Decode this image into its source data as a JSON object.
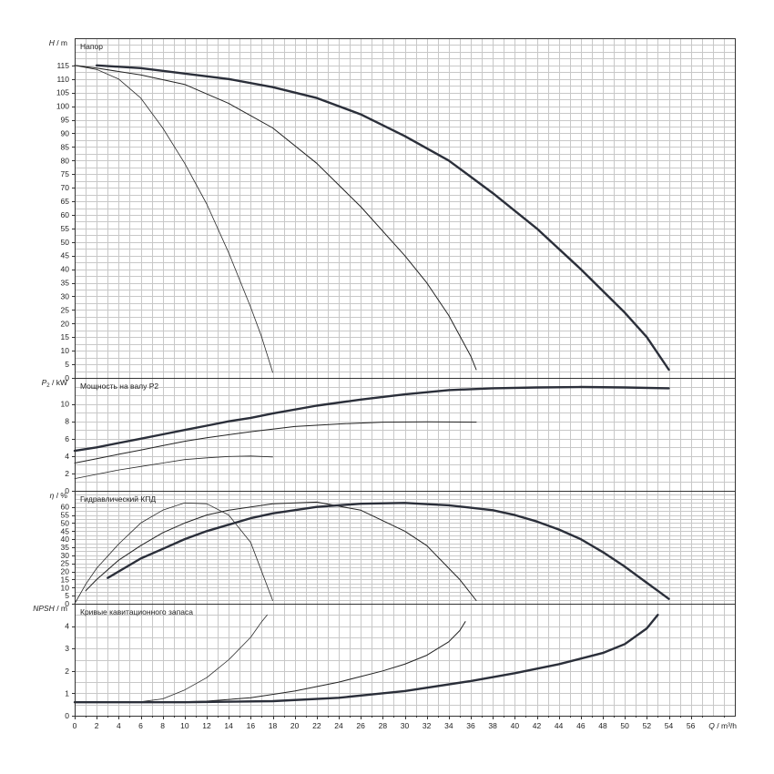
{
  "chart_data": {
    "type": "line",
    "x_axis": {
      "label_var": "Q",
      "label_unit": "m³/h",
      "range": [
        0,
        60
      ],
      "ticks": [
        "0",
        "2",
        "4",
        "6",
        "8",
        "10",
        "12",
        "14",
        "16",
        "18",
        "20",
        "22",
        "24",
        "26",
        "28",
        "30",
        "32",
        "34",
        "36",
        "38",
        "40",
        "42",
        "44",
        "46",
        "48",
        "50",
        "52",
        "54",
        "56"
      ]
    },
    "panels": [
      {
        "id": "head",
        "title": "Напор",
        "ylabel_var": "H",
        "ylabel_unit": "m",
        "ylim": [
          0,
          125
        ],
        "ticks": [
          "0",
          "5",
          "10",
          "15",
          "20",
          "25",
          "30",
          "35",
          "40",
          "45",
          "50",
          "55",
          "60",
          "65",
          "70",
          "75",
          "80",
          "85",
          "90",
          "95",
          "100",
          "105",
          "110",
          "115"
        ],
        "series": [
          {
            "style": "thin",
            "points": [
              [
                0,
                115
              ],
              [
                2,
                113.5
              ],
              [
                4,
                110
              ],
              [
                6,
                103
              ],
              [
                8,
                92
              ],
              [
                10,
                79
              ],
              [
                12,
                64
              ],
              [
                14,
                46
              ],
              [
                16,
                26
              ],
              [
                17,
                15
              ],
              [
                18,
                2
              ]
            ]
          },
          {
            "style": "medium",
            "points": [
              [
                0,
                115
              ],
              [
                2,
                114
              ],
              [
                6,
                111.5
              ],
              [
                10,
                108
              ],
              [
                14,
                101
              ],
              [
                18,
                92
              ],
              [
                22,
                79
              ],
              [
                26,
                63
              ],
              [
                30,
                45
              ],
              [
                32,
                35
              ],
              [
                34,
                23
              ],
              [
                36,
                8
              ],
              [
                36.5,
                3
              ]
            ]
          },
          {
            "style": "bold",
            "points": [
              [
                2,
                115
              ],
              [
                6,
                114
              ],
              [
                10,
                112
              ],
              [
                14,
                110
              ],
              [
                18,
                107
              ],
              [
                22,
                103
              ],
              [
                26,
                97
              ],
              [
                30,
                89
              ],
              [
                34,
                80
              ],
              [
                38,
                68
              ],
              [
                42,
                55
              ],
              [
                46,
                40
              ],
              [
                50,
                24
              ],
              [
                52,
                15
              ],
              [
                54,
                3
              ]
            ]
          }
        ]
      },
      {
        "id": "power",
        "title": "Мощность на валу P2",
        "ylabel_var": "P",
        "ylabel_sub": "2",
        "ylabel_unit": "kW",
        "ylim": [
          0,
          13
        ],
        "ticks": [
          "0",
          "2",
          "4",
          "6",
          "8",
          "10"
        ],
        "series": [
          {
            "style": "thin",
            "points": [
              [
                0,
                1.4
              ],
              [
                2,
                1.9
              ],
              [
                4,
                2.4
              ],
              [
                6,
                2.8
              ],
              [
                8,
                3.2
              ],
              [
                10,
                3.6
              ],
              [
                12,
                3.8
              ],
              [
                14,
                3.95
              ],
              [
                16,
                4.0
              ],
              [
                18,
                3.9
              ]
            ]
          },
          {
            "style": "medium",
            "points": [
              [
                0,
                3.2
              ],
              [
                2,
                3.7
              ],
              [
                4,
                4.2
              ],
              [
                6,
                4.7
              ],
              [
                8,
                5.2
              ],
              [
                10,
                5.7
              ],
              [
                12,
                6.1
              ],
              [
                16,
                6.8
              ],
              [
                20,
                7.4
              ],
              [
                24,
                7.7
              ],
              [
                28,
                7.9
              ],
              [
                32,
                7.95
              ],
              [
                36.5,
                7.9
              ]
            ]
          },
          {
            "style": "bold",
            "points": [
              [
                0,
                4.6
              ],
              [
                2,
                5.0
              ],
              [
                4,
                5.5
              ],
              [
                6,
                6.0
              ],
              [
                8,
                6.5
              ],
              [
                10,
                7.0
              ],
              [
                12,
                7.5
              ],
              [
                14,
                8.0
              ],
              [
                16,
                8.4
              ],
              [
                18,
                8.9
              ],
              [
                22,
                9.8
              ],
              [
                26,
                10.5
              ],
              [
                30,
                11.1
              ],
              [
                34,
                11.6
              ],
              [
                38,
                11.8
              ],
              [
                42,
                11.9
              ],
              [
                46,
                11.95
              ],
              [
                50,
                11.9
              ],
              [
                54,
                11.8
              ]
            ]
          }
        ]
      },
      {
        "id": "efficiency",
        "title": "Гидравлический КПД",
        "ylabel_var": "η",
        "ylabel_unit": "%",
        "ylim": [
          0,
          70
        ],
        "ticks": [
          "0",
          "5",
          "10",
          "15",
          "20",
          "25",
          "30",
          "35",
          "40",
          "45",
          "50",
          "55",
          "60"
        ],
        "series": [
          {
            "style": "thin",
            "points": [
              [
                0,
                0
              ],
              [
                1,
                12
              ],
              [
                2,
                22
              ],
              [
                4,
                37
              ],
              [
                6,
                50
              ],
              [
                8,
                58
              ],
              [
                10,
                62.5
              ],
              [
                12,
                62
              ],
              [
                14,
                55
              ],
              [
                16,
                38
              ],
              [
                17,
                20
              ],
              [
                18,
                2
              ]
            ]
          },
          {
            "style": "medium",
            "points": [
              [
                1,
                8
              ],
              [
                2,
                15
              ],
              [
                4,
                27
              ],
              [
                6,
                36
              ],
              [
                8,
                44
              ],
              [
                10,
                50
              ],
              [
                12,
                55
              ],
              [
                14,
                58
              ],
              [
                18,
                62
              ],
              [
                22,
                63
              ],
              [
                26,
                58
              ],
              [
                30,
                45
              ],
              [
                32,
                36
              ],
              [
                34,
                22
              ],
              [
                35,
                15
              ],
              [
                36.5,
                2
              ]
            ]
          },
          {
            "style": "bold",
            "points": [
              [
                3,
                16
              ],
              [
                4,
                20
              ],
              [
                6,
                28
              ],
              [
                8,
                34
              ],
              [
                10,
                40
              ],
              [
                12,
                45
              ],
              [
                14,
                49
              ],
              [
                16,
                53
              ],
              [
                18,
                56
              ],
              [
                22,
                60
              ],
              [
                26,
                62
              ],
              [
                30,
                62.5
              ],
              [
                34,
                61
              ],
              [
                38,
                58
              ],
              [
                40,
                55
              ],
              [
                42,
                51
              ],
              [
                44,
                46
              ],
              [
                46,
                40
              ],
              [
                48,
                32
              ],
              [
                50,
                23
              ],
              [
                52,
                13
              ],
              [
                53,
                8
              ],
              [
                54,
                3
              ]
            ]
          }
        ]
      },
      {
        "id": "npsh",
        "title": "Кривые кавитационного запаса",
        "ylabel_var": "NPSH",
        "ylabel_unit": "m",
        "ylim": [
          0,
          5
        ],
        "ticks": [
          "0",
          "1",
          "2",
          "3",
          "4"
        ],
        "series": [
          {
            "style": "thin",
            "points": [
              [
                0,
                0.6
              ],
              [
                4,
                0.6
              ],
              [
                6,
                0.62
              ],
              [
                8,
                0.75
              ],
              [
                10,
                1.15
              ],
              [
                12,
                1.7
              ],
              [
                14,
                2.5
              ],
              [
                16,
                3.5
              ],
              [
                17,
                4.2
              ],
              [
                17.5,
                4.5
              ]
            ]
          },
          {
            "style": "medium",
            "points": [
              [
                0,
                0.6
              ],
              [
                8,
                0.6
              ],
              [
                12,
                0.65
              ],
              [
                16,
                0.8
              ],
              [
                20,
                1.1
              ],
              [
                24,
                1.5
              ],
              [
                28,
                2.0
              ],
              [
                30,
                2.3
              ],
              [
                32,
                2.7
              ],
              [
                34,
                3.3
              ],
              [
                35,
                3.8
              ],
              [
                35.5,
                4.2
              ]
            ]
          },
          {
            "style": "bold",
            "points": [
              [
                0,
                0.6
              ],
              [
                10,
                0.6
              ],
              [
                18,
                0.65
              ],
              [
                24,
                0.8
              ],
              [
                30,
                1.1
              ],
              [
                36,
                1.55
              ],
              [
                40,
                1.9
              ],
              [
                44,
                2.3
              ],
              [
                48,
                2.8
              ],
              [
                50,
                3.2
              ],
              [
                52,
                3.9
              ],
              [
                53,
                4.5
              ]
            ]
          }
        ]
      }
    ]
  }
}
